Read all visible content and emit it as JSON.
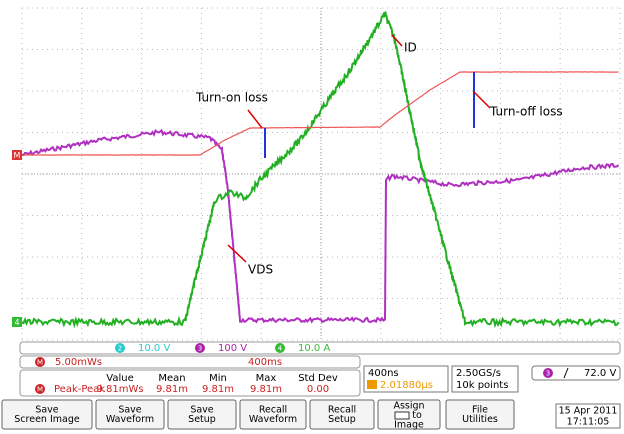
{
  "annotations": {
    "turn_on": "Turn-on loss",
    "id": "ID",
    "turn_off": "Turn-off loss",
    "vds": "VDS"
  },
  "markers": {
    "math": "M",
    "ch4": "4"
  },
  "channels": [
    {
      "badge": "2",
      "scale": "10.0 V"
    },
    {
      "badge": "3",
      "scale": "100 V"
    },
    {
      "badge": "4",
      "scale": "10.0 A"
    }
  ],
  "math": {
    "badge": "M",
    "scale": "5.00mWs",
    "time": "400ms"
  },
  "measurement": {
    "badge": "M",
    "label": "Peak-Peak",
    "headers": [
      "Value",
      "Mean",
      "Min",
      "Max",
      "Std Dev"
    ],
    "values": [
      "9.81mWs",
      "9.81m",
      "9.81m",
      "9.81m",
      "0.00"
    ]
  },
  "timebase": {
    "scale": "400ns",
    "position": "2.01880µs",
    "rate": "2.50GS/s",
    "points": "10k points"
  },
  "trigger": {
    "badge": "3",
    "level": "72.0 V"
  },
  "buttons": [
    [
      "Save",
      "Screen Image"
    ],
    [
      "Save",
      "Waveform"
    ],
    [
      "Save",
      "Setup"
    ],
    [
      "Recall",
      "Waveform"
    ],
    [
      "Recall",
      "Setup"
    ],
    [
      "Assign",
      "to",
      "Image"
    ],
    [
      "File",
      "Utilities"
    ]
  ],
  "datetime": {
    "date": "15 Apr 2011",
    "time": "17:11:05"
  }
}
